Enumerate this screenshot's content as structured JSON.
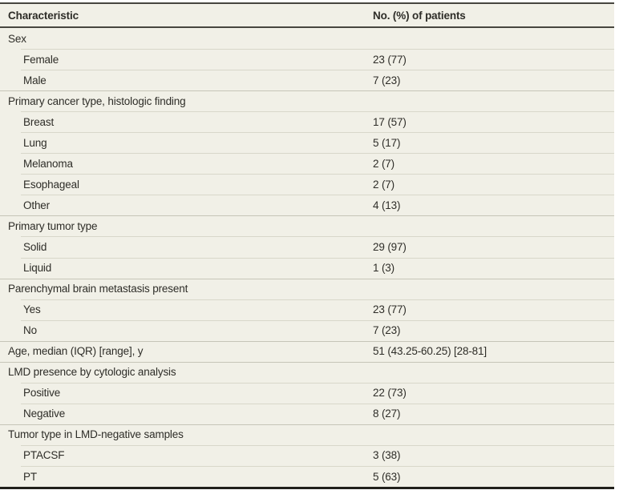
{
  "table": {
    "title_hint": "Patient characteristics table",
    "columns": [
      "Characteristic",
      "No. (%) of patients"
    ],
    "rows": [
      {
        "label": "Sex",
        "value": "",
        "indent": false
      },
      {
        "label": "Female",
        "value": "23 (77)",
        "indent": true
      },
      {
        "label": "Male",
        "value": "7 (23)",
        "indent": true
      },
      {
        "label": "Primary cancer type, histologic finding",
        "value": "",
        "indent": false
      },
      {
        "label": "Breast",
        "value": "17 (57)",
        "indent": true
      },
      {
        "label": "Lung",
        "value": "5 (17)",
        "indent": true
      },
      {
        "label": "Melanoma",
        "value": "2 (7)",
        "indent": true
      },
      {
        "label": "Esophageal",
        "value": "2 (7)",
        "indent": true
      },
      {
        "label": "Other",
        "value": "4 (13)",
        "indent": true
      },
      {
        "label": "Primary tumor type",
        "value": "",
        "indent": false
      },
      {
        "label": "Solid",
        "value": "29 (97)",
        "indent": true
      },
      {
        "label": "Liquid",
        "value": "1 (3)",
        "indent": true
      },
      {
        "label": "Parenchymal brain metastasis present",
        "value": "",
        "indent": false
      },
      {
        "label": "Yes",
        "value": "23 (77)",
        "indent": true
      },
      {
        "label": "No",
        "value": "7 (23)",
        "indent": true
      },
      {
        "label": "Age, median (IQR) [range], y",
        "value": "51 (43.25-60.25) [28-81]",
        "indent": false
      },
      {
        "label": "LMD presence by cytologic analysis",
        "value": "",
        "indent": false
      },
      {
        "label": "Positive",
        "value": "22 (73)",
        "indent": true
      },
      {
        "label": "Negative",
        "value": "8 (27)",
        "indent": true
      },
      {
        "label": "Tumor type in LMD-negative samples",
        "value": "",
        "indent": false
      },
      {
        "label": "PTACSF",
        "value": "3 (38)",
        "indent": true
      },
      {
        "label": "PT",
        "value": "5 (63)",
        "indent": true
      }
    ],
    "colors": {
      "table_background": "#f1f0e7",
      "text": "#2e2d28",
      "rule_top": "#47463f",
      "rule_header": "#47463f",
      "rule_bottom": "#21201b",
      "separator_full_width": "#c6c5b8",
      "separator_indented": "#d8d7ca"
    }
  }
}
